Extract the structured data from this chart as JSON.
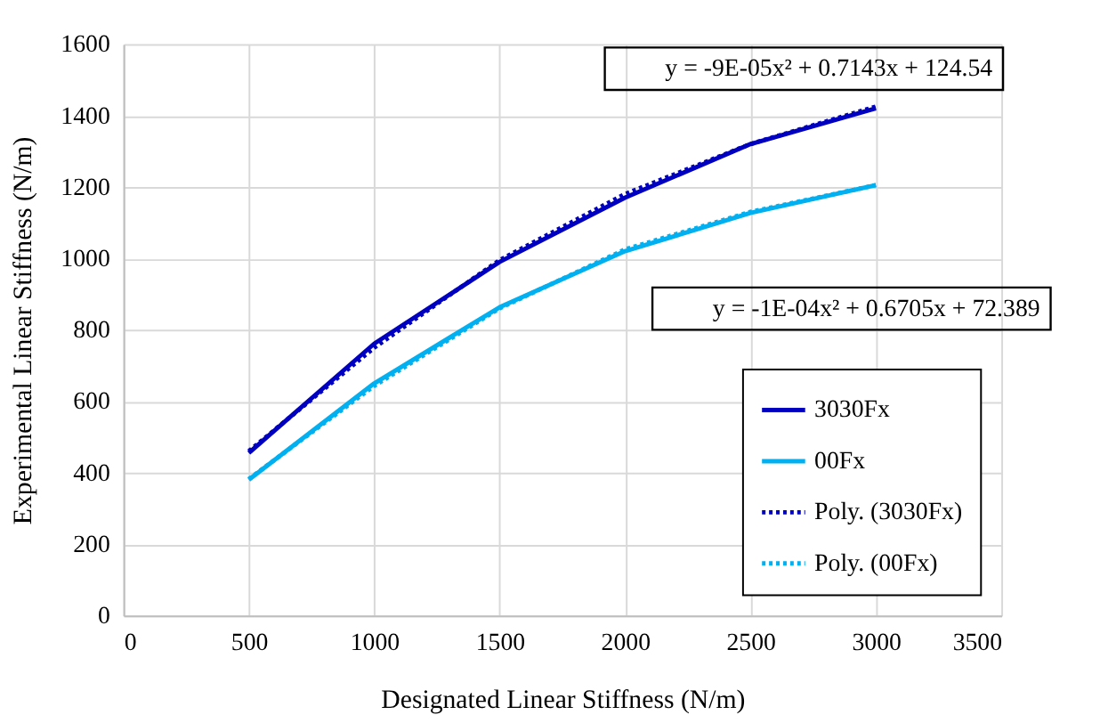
{
  "chart_data": {
    "type": "line",
    "xlabel": "Designated Linear Stiffness (N/m)",
    "ylabel": "Experimental Linear Stiffness (N/m)",
    "x": [
      500,
      1000,
      1500,
      2000,
      2500,
      3000
    ],
    "series": [
      {
        "name": "3030Fx",
        "color": "#0000c0",
        "line_style": "solid",
        "values": [
          455,
          761,
          990,
          1170,
          1320,
          1420
        ]
      },
      {
        "name": "00Fx",
        "color": "#00b0f0",
        "line_style": "solid",
        "values": [
          380,
          650,
          863,
          1020,
          1127,
          1205
        ]
      },
      {
        "name": "Poly. (3030Fx)",
        "color": "#0000c0",
        "line_style": "dotted",
        "values": [
          460,
          750,
          995,
          1180,
          1320,
          1425
        ]
      },
      {
        "name": "Poly. (00Fx)",
        "color": "#00b0f0",
        "line_style": "dotted",
        "values": [
          382,
          643,
          860,
          1025,
          1130,
          1205
        ]
      }
    ],
    "annotations": [
      "y = -9E-05x² + 0.7143x + 124.54",
      "y = -1E-04x² + 0.6705x + 72.389"
    ],
    "xlim": [
      0,
      3500
    ],
    "xticks": [
      0,
      500,
      1000,
      1500,
      2000,
      2500,
      3000,
      3500
    ],
    "ylim": [
      0,
      1600
    ],
    "yticks": [
      0,
      200,
      400,
      600,
      800,
      1000,
      1200,
      1400,
      1600
    ],
    "grid": true,
    "legend": "bottom right",
    "marker": "none"
  }
}
